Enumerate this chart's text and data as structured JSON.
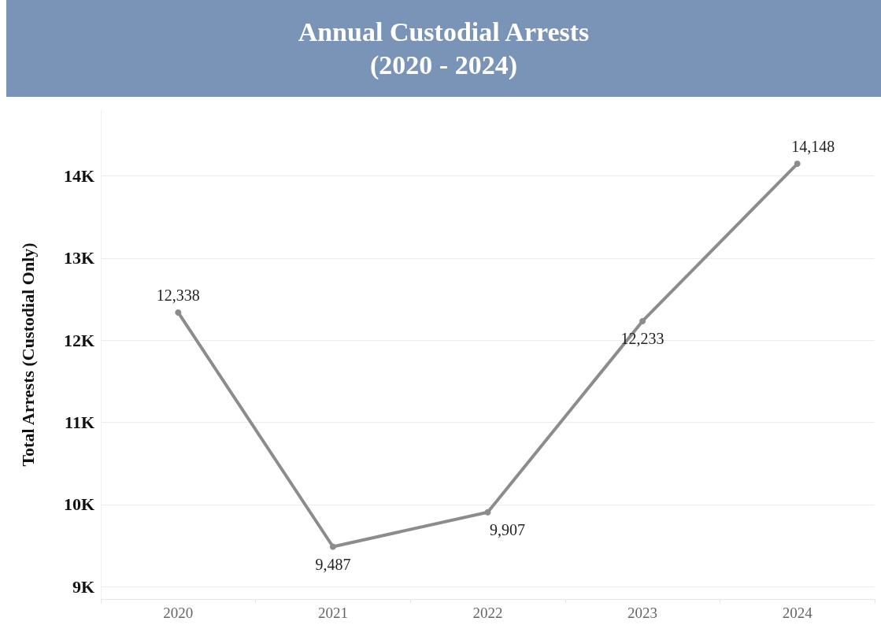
{
  "chart_data": {
    "type": "line",
    "title": "Annual Custodial Arrests\n(2020 - 2024)",
    "ylabel": "Total Arrests (Custodial Only)",
    "categories": [
      "2020",
      "2021",
      "2022",
      "2023",
      "2024"
    ],
    "series": [
      {
        "color": "#8c8c8c",
        "values": [
          12338,
          9487,
          9907,
          12233,
          14148
        ],
        "value_labels": [
          "12,338",
          "9,487",
          "9,907",
          "12,233",
          "14,148"
        ]
      }
    ],
    "ylim": [
      8850,
      14800
    ],
    "yticks": [
      {
        "value": 9000,
        "label": "9K"
      },
      {
        "value": 10000,
        "label": "10K"
      },
      {
        "value": 11000,
        "label": "11K"
      },
      {
        "value": 12000,
        "label": "12K"
      },
      {
        "value": 13000,
        "label": "13K"
      },
      {
        "value": 14000,
        "label": "14K"
      }
    ],
    "grid": "y",
    "marker": "circle",
    "line_style": "solid"
  }
}
